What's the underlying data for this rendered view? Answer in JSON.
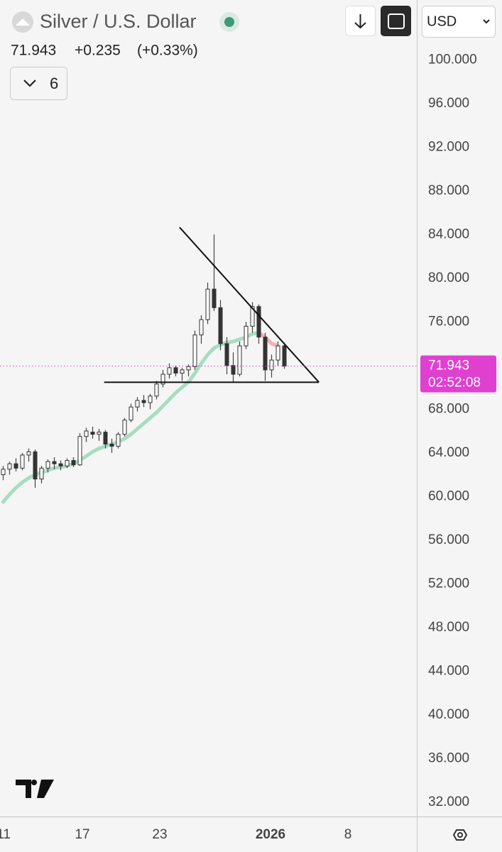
{
  "chart_data": {
    "type": "candlestick",
    "title": "Silver / U.S. Dollar",
    "last_price": 71.943,
    "change": "+0.235",
    "change_percent": "(+0.33%)",
    "interval": "6",
    "currency": "USD",
    "countdown": "02:52:08",
    "x": [
      0,
      1,
      2,
      3,
      4,
      5,
      6,
      7,
      8,
      9,
      10,
      11,
      12,
      13,
      14,
      15,
      16,
      17,
      18,
      19,
      20,
      21,
      22,
      23,
      24,
      25,
      26,
      27,
      28,
      29,
      30,
      31,
      32,
      33,
      34,
      35,
      36,
      37,
      38,
      39,
      40,
      41,
      42,
      43,
      44
    ],
    "open": [
      62.0,
      62.5,
      63.0,
      62.6,
      63.8,
      64.1,
      61.6,
      62.6,
      63.2,
      63.0,
      62.8,
      63.3,
      62.9,
      65.5,
      65.9,
      65.7,
      65.9,
      64.8,
      64.6,
      65.7,
      67.0,
      68.2,
      68.8,
      68.6,
      69.2,
      70.3,
      71.2,
      71.8,
      71.3,
      71.6,
      71.9,
      74.8,
      76.2,
      79.0,
      77.3,
      74.0,
      72.0,
      71.2,
      73.8,
      75.6,
      77.4,
      74.6,
      71.6,
      72.5,
      73.8
    ],
    "high": [
      62.8,
      63.2,
      63.5,
      64.0,
      64.4,
      64.3,
      62.8,
      63.4,
      63.6,
      63.3,
      63.5,
      63.6,
      65.8,
      66.3,
      66.4,
      66.2,
      66.1,
      65.3,
      65.9,
      67.2,
      68.5,
      69.1,
      69.3,
      69.4,
      70.6,
      71.6,
      72.2,
      72.0,
      71.8,
      72.1,
      75.2,
      76.6,
      79.6,
      84.0,
      78.0,
      74.6,
      73.2,
      74.2,
      76.0,
      77.8,
      77.6,
      75.0,
      73.0,
      74.2,
      74.1
    ],
    "low": [
      61.5,
      62.0,
      62.3,
      62.4,
      63.2,
      60.8,
      61.2,
      62.2,
      62.5,
      62.4,
      62.6,
      62.7,
      62.8,
      65.0,
      65.3,
      65.1,
      64.4,
      64.0,
      64.4,
      65.5,
      66.8,
      67.8,
      68.2,
      68.0,
      68.9,
      70.0,
      70.8,
      71.0,
      70.6,
      71.0,
      71.6,
      74.0,
      75.8,
      77.0,
      73.4,
      71.2,
      70.5,
      71.0,
      73.5,
      75.0,
      74.0,
      70.6,
      70.9,
      72.0,
      71.7
    ],
    "close": [
      62.5,
      63.0,
      62.6,
      63.8,
      64.1,
      61.6,
      62.6,
      63.2,
      63.0,
      62.8,
      63.3,
      62.9,
      65.5,
      66.0,
      65.7,
      65.9,
      64.8,
      64.6,
      65.7,
      67.0,
      68.2,
      68.8,
      68.6,
      69.2,
      70.3,
      71.2,
      71.8,
      71.3,
      71.6,
      71.9,
      74.8,
      76.2,
      79.0,
      77.3,
      74.0,
      72.0,
      71.2,
      73.8,
      75.6,
      77.4,
      74.6,
      71.6,
      72.5,
      73.8,
      71.943
    ],
    "ma": [
      59.5,
      60.2,
      60.8,
      61.3,
      61.7,
      62.0,
      62.2,
      62.4,
      62.6,
      62.7,
      62.8,
      63.0,
      63.3,
      63.7,
      64.1,
      64.4,
      64.6,
      64.8,
      65.0,
      65.3,
      65.7,
      66.2,
      66.7,
      67.2,
      67.7,
      68.3,
      68.9,
      69.5,
      70.0,
      70.5,
      71.3,
      72.2,
      73.0,
      73.6,
      73.9,
      74.1,
      74.2,
      74.4,
      74.6,
      74.9,
      75.0,
      74.6,
      74.0,
      73.8,
      null
    ],
    "ma_up_color": "#a8dcc2",
    "ma_down_color": "#f0b0b8",
    "up_color": "#ffffff",
    "down_color": "#333333",
    "price_line_color": "#e040d0",
    "trendlines": [
      {
        "x": [
          27.6,
          49.4
        ],
        "y": [
          84.66,
          70.47
        ]
      },
      {
        "x": [
          15.8,
          49.4
        ],
        "y": [
          70.47,
          70.47
        ]
      }
    ],
    "xlim": [
      -0.5,
      64.72
    ],
    "xticks": [
      {
        "value": 0.06,
        "label": "11"
      },
      {
        "value": 12.39,
        "label": "17"
      },
      {
        "value": 24.5,
        "label": "23"
      },
      {
        "value": 41.83,
        "label": "2026"
      },
      {
        "value": 53.94,
        "label": "8"
      }
    ],
    "ylim": [
      30.69,
      105.48
    ],
    "yticks": [
      {
        "value": 32,
        "label": "32.000"
      },
      {
        "value": 36,
        "label": "36.000"
      },
      {
        "value": 40,
        "label": "40.000"
      },
      {
        "value": 44,
        "label": "44.000"
      },
      {
        "value": 48,
        "label": "48.000"
      },
      {
        "value": 52,
        "label": "52.000"
      },
      {
        "value": 56,
        "label": "56.000"
      },
      {
        "value": 60,
        "label": "60.000"
      },
      {
        "value": 64,
        "label": "64.000"
      },
      {
        "value": 68,
        "label": "68.000"
      },
      {
        "value": 72,
        "label": "72.000"
      },
      {
        "value": 76,
        "label": "76.000"
      },
      {
        "value": 80,
        "label": "80.000"
      },
      {
        "value": 84,
        "label": "84.000"
      },
      {
        "value": 88,
        "label": "88.000"
      },
      {
        "value": 92,
        "label": "92.000"
      },
      {
        "value": 96,
        "label": "96.000"
      },
      {
        "value": 100,
        "label": "100.000"
      }
    ]
  }
}
